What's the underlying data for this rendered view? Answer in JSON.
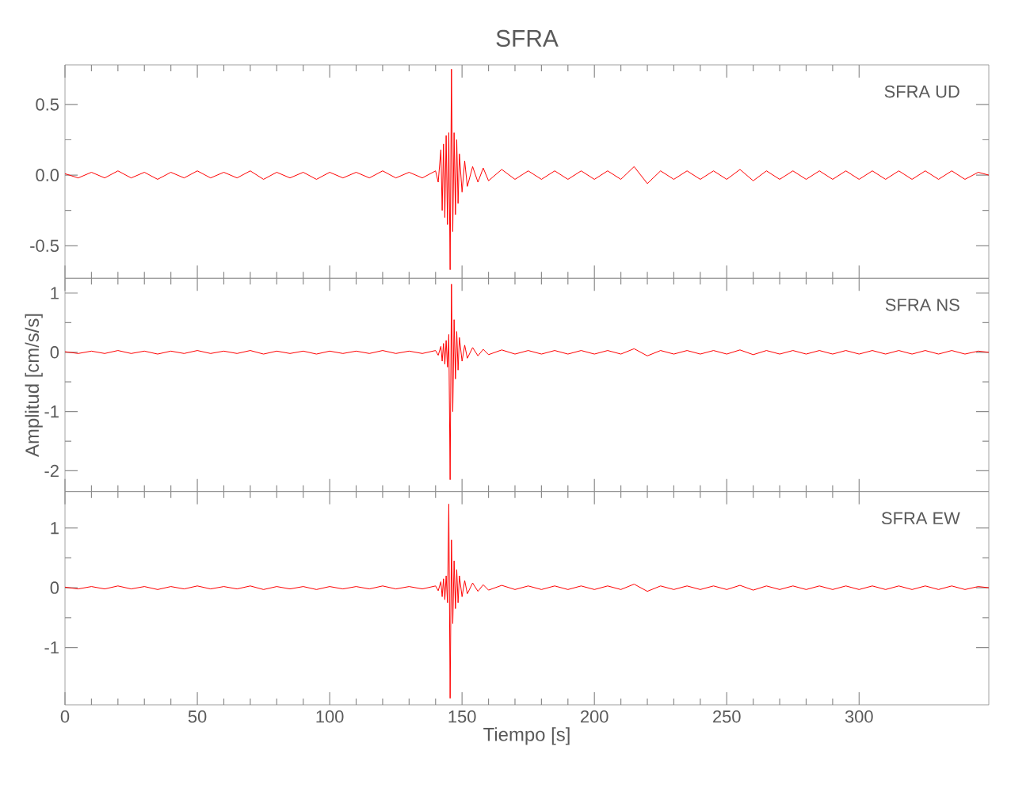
{
  "chart_data": [
    {
      "type": "line",
      "title": "SFRA",
      "annotations": [
        "SFRA  UD"
      ],
      "color": "#ff0000",
      "tick_labels": "y",
      "xlim": [
        0,
        349
      ],
      "xticks": [
        0,
        50,
        100,
        150,
        200,
        250,
        300
      ],
      "ylim": [
        -0.73,
        0.78
      ],
      "yticks": [
        -0.5,
        {
          "value": 0,
          "label": "0.0"
        },
        0.5
      ],
      "x": [
        0,
        5,
        10,
        15,
        20,
        25,
        30,
        35,
        40,
        45,
        50,
        55,
        60,
        65,
        70,
        75,
        80,
        85,
        90,
        95,
        100,
        105,
        110,
        115,
        120,
        125,
        130,
        135,
        140,
        141,
        142,
        142.5,
        143,
        143.5,
        144,
        144.5,
        145,
        145.5,
        146,
        146.5,
        147,
        147.5,
        148,
        148.5,
        149,
        150,
        151,
        152,
        154,
        156,
        158,
        160,
        165,
        170,
        175,
        180,
        185,
        190,
        195,
        200,
        205,
        210,
        215,
        220,
        225,
        230,
        235,
        240,
        245,
        250,
        255,
        260,
        265,
        270,
        275,
        280,
        285,
        290,
        295,
        300,
        305,
        310,
        315,
        320,
        325,
        330,
        335,
        340,
        345,
        349
      ],
      "values": [
        0.01,
        -0.02,
        0.02,
        -0.02,
        0.03,
        -0.02,
        0.02,
        -0.03,
        0.02,
        -0.02,
        0.03,
        -0.02,
        0.02,
        -0.02,
        0.03,
        -0.03,
        0.02,
        -0.02,
        0.02,
        -0.03,
        0.02,
        -0.02,
        0.02,
        -0.02,
        0.03,
        -0.02,
        0.02,
        -0.02,
        0.03,
        -0.05,
        0.18,
        -0.25,
        0.22,
        -0.3,
        0.28,
        -0.35,
        0.3,
        -0.67,
        0.75,
        -0.4,
        0.3,
        -0.28,
        0.25,
        -0.2,
        0.15,
        -0.12,
        0.1,
        -0.08,
        0.06,
        -0.05,
        0.05,
        -0.04,
        0.04,
        -0.03,
        0.03,
        -0.03,
        0.03,
        -0.03,
        0.03,
        -0.03,
        0.03,
        -0.03,
        0.06,
        -0.06,
        0.03,
        -0.03,
        0.03,
        -0.03,
        0.03,
        -0.03,
        0.04,
        -0.04,
        0.03,
        -0.03,
        0.03,
        -0.03,
        0.03,
        -0.03,
        0.03,
        -0.03,
        0.03,
        -0.03,
        0.03,
        -0.03,
        0.03,
        -0.03,
        0.03,
        -0.03,
        0.02,
        0.0
      ]
    },
    {
      "type": "line",
      "ylabel": "Amplitud [cm/s/s]",
      "annotations": [
        "SFRA  NS"
      ],
      "color": "#ff0000",
      "tick_labels": "y",
      "xlim": [
        0,
        349
      ],
      "xticks": [
        0,
        50,
        100,
        150,
        200,
        250,
        300
      ],
      "ylim": [
        -2.35,
        1.25
      ],
      "yticks": [
        -2,
        -1,
        0,
        1
      ],
      "x": [
        0,
        5,
        10,
        15,
        20,
        25,
        30,
        35,
        40,
        45,
        50,
        55,
        60,
        65,
        70,
        75,
        80,
        85,
        90,
        95,
        100,
        105,
        110,
        115,
        120,
        125,
        130,
        135,
        140,
        141,
        142,
        142.5,
        143,
        143.5,
        144,
        144.5,
        145,
        145.5,
        146,
        146.5,
        147,
        147.5,
        148,
        148.5,
        149,
        150,
        151,
        152,
        154,
        156,
        158,
        160,
        165,
        170,
        175,
        180,
        185,
        190,
        195,
        200,
        205,
        210,
        215,
        220,
        225,
        230,
        235,
        240,
        245,
        250,
        255,
        260,
        265,
        270,
        275,
        280,
        285,
        290,
        295,
        300,
        305,
        310,
        315,
        320,
        325,
        330,
        335,
        340,
        345,
        349
      ],
      "values": [
        0.01,
        -0.02,
        0.02,
        -0.02,
        0.03,
        -0.02,
        0.02,
        -0.03,
        0.02,
        -0.02,
        0.03,
        -0.02,
        0.02,
        -0.02,
        0.03,
        -0.03,
        0.02,
        -0.02,
        0.02,
        -0.03,
        0.02,
        -0.02,
        0.02,
        -0.02,
        0.03,
        -0.02,
        0.02,
        -0.02,
        0.03,
        -0.05,
        0.1,
        -0.15,
        0.15,
        -0.2,
        0.2,
        -0.25,
        0.3,
        -2.15,
        1.15,
        -1.0,
        0.55,
        -0.45,
        0.35,
        -0.3,
        0.25,
        -0.15,
        0.12,
        -0.1,
        0.08,
        -0.06,
        0.05,
        -0.04,
        0.04,
        -0.03,
        0.03,
        -0.03,
        0.03,
        -0.03,
        0.03,
        -0.03,
        0.03,
        -0.03,
        0.06,
        -0.06,
        0.03,
        -0.03,
        0.03,
        -0.03,
        0.03,
        -0.03,
        0.04,
        -0.04,
        0.03,
        -0.03,
        0.03,
        -0.03,
        0.03,
        -0.03,
        0.03,
        -0.03,
        0.03,
        -0.03,
        0.03,
        -0.03,
        0.03,
        -0.03,
        0.03,
        -0.03,
        0.02,
        0.0
      ]
    },
    {
      "type": "line",
      "xlabel": "Tiempo [s]",
      "annotations": [
        "SFRA  EW"
      ],
      "color": "#ff0000",
      "xlim": [
        0,
        349
      ],
      "xticks": [
        0,
        50,
        100,
        150,
        200,
        250,
        300
      ],
      "ylim": [
        -1.96,
        1.61
      ],
      "yticks": [
        -1,
        0,
        1
      ],
      "x": [
        0,
        5,
        10,
        15,
        20,
        25,
        30,
        35,
        40,
        45,
        50,
        55,
        60,
        65,
        70,
        75,
        80,
        85,
        90,
        95,
        100,
        105,
        110,
        115,
        120,
        125,
        130,
        135,
        140,
        141,
        142,
        142.5,
        143,
        143.5,
        144,
        144.5,
        145,
        145.5,
        146,
        146.5,
        147,
        147.5,
        148,
        148.5,
        149,
        150,
        151,
        152,
        154,
        156,
        158,
        160,
        165,
        170,
        175,
        180,
        185,
        190,
        195,
        200,
        205,
        210,
        215,
        220,
        225,
        230,
        235,
        240,
        245,
        250,
        255,
        260,
        265,
        270,
        275,
        280,
        285,
        290,
        295,
        300,
        305,
        310,
        315,
        320,
        325,
        330,
        335,
        340,
        345,
        349
      ],
      "values": [
        0.01,
        -0.02,
        0.02,
        -0.02,
        0.03,
        -0.02,
        0.02,
        -0.03,
        0.02,
        -0.02,
        0.03,
        -0.02,
        0.02,
        -0.02,
        0.03,
        -0.03,
        0.02,
        -0.02,
        0.02,
        -0.03,
        0.02,
        -0.02,
        0.02,
        -0.02,
        0.03,
        -0.02,
        0.02,
        -0.02,
        0.03,
        -0.05,
        0.1,
        -0.15,
        0.15,
        -0.2,
        0.2,
        -0.25,
        1.4,
        -1.85,
        0.8,
        -0.6,
        0.45,
        -0.35,
        0.3,
        -0.25,
        0.2,
        -0.15,
        0.12,
        -0.1,
        0.08,
        -0.06,
        0.05,
        -0.04,
        0.04,
        -0.03,
        0.03,
        -0.03,
        0.03,
        -0.03,
        0.03,
        -0.03,
        0.03,
        -0.03,
        0.06,
        -0.06,
        0.03,
        -0.03,
        0.03,
        -0.03,
        0.03,
        -0.03,
        0.04,
        -0.04,
        0.03,
        -0.03,
        0.03,
        -0.03,
        0.03,
        -0.03,
        0.03,
        -0.03,
        0.03,
        -0.03,
        0.03,
        -0.03,
        0.03,
        -0.03,
        0.03,
        -0.03,
        0.02,
        0.0
      ]
    }
  ]
}
